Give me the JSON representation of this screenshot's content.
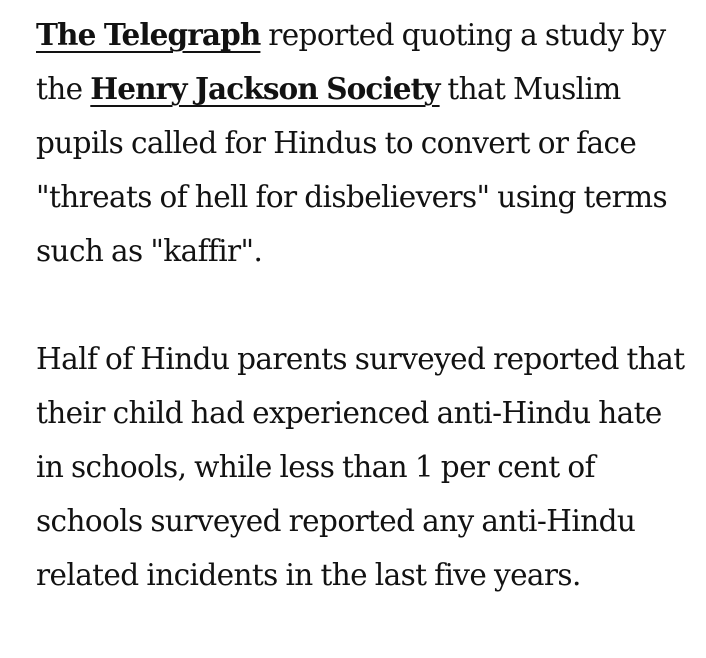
{
  "article": {
    "paragraph_1": {
      "link_1": "The Telegraph",
      "text_1": " reported quoting a study by the ",
      "link_2": "Henry Jackson Society",
      "text_2": " that Muslim pupils called for Hindus to convert or face \"threats of hell for disbelievers\" using terms such as \"kaffir\"."
    },
    "paragraph_2": {
      "text": "Half of Hindu parents surveyed reported that their child had experienced anti-Hindu hate in schools, while less than 1 per cent of schools surveyed reported any anti-Hindu related incidents in the last five years."
    }
  }
}
